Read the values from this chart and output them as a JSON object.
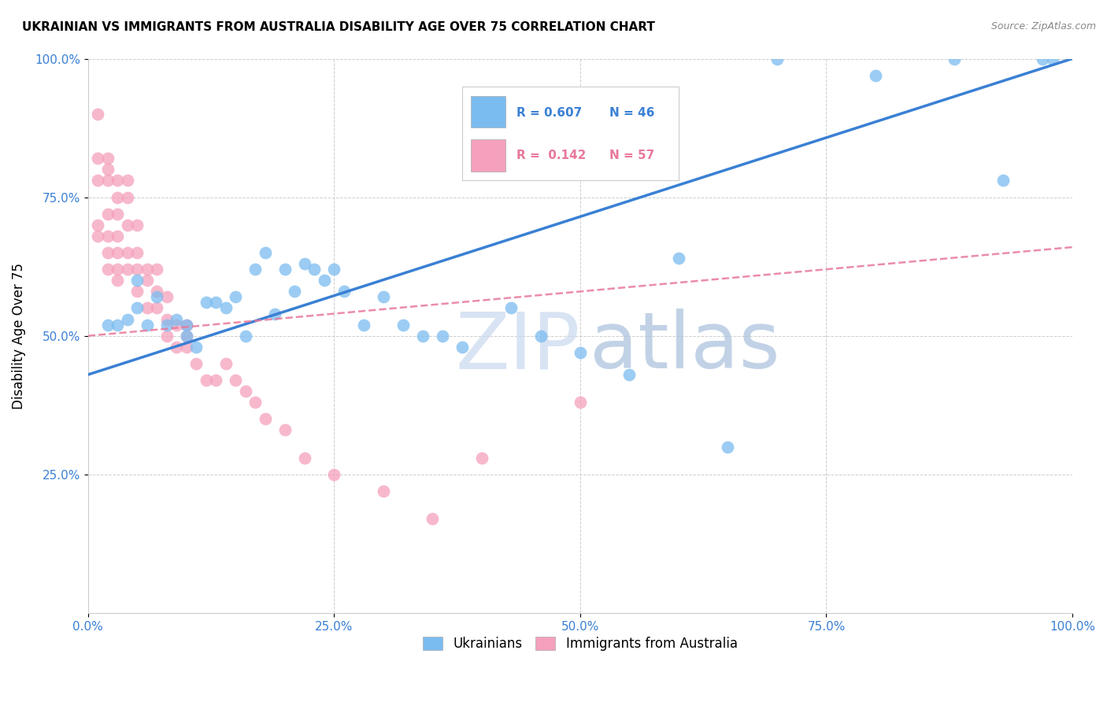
{
  "title": "UKRAINIAN VS IMMIGRANTS FROM AUSTRALIA DISABILITY AGE OVER 75 CORRELATION CHART",
  "source": "Source: ZipAtlas.com",
  "ylabel": "Disability Age Over 75",
  "xlim": [
    0,
    1.0
  ],
  "ylim": [
    0,
    1.0
  ],
  "xtick_labels": [
    "0.0%",
    "25.0%",
    "50.0%",
    "75.0%",
    "100.0%"
  ],
  "xtick_vals": [
    0.0,
    0.25,
    0.5,
    0.75,
    1.0
  ],
  "ytick_labels": [
    "25.0%",
    "50.0%",
    "75.0%",
    "100.0%"
  ],
  "ytick_vals": [
    0.25,
    0.5,
    0.75,
    1.0
  ],
  "blue_color": "#7bbcf0",
  "pink_color": "#f5a0bc",
  "blue_line_color": "#3a80d4",
  "pink_line_color": "#e8789a",
  "legend_R_blue": "0.607",
  "legend_N_blue": "46",
  "legend_R_pink": "0.142",
  "legend_N_pink": "57",
  "legend_label_blue": "Ukrainians",
  "legend_label_pink": "Immigrants from Australia",
  "blue_x": [
    0.02,
    0.03,
    0.04,
    0.05,
    0.05,
    0.06,
    0.07,
    0.08,
    0.09,
    0.1,
    0.1,
    0.11,
    0.12,
    0.13,
    0.14,
    0.15,
    0.16,
    0.17,
    0.18,
    0.19,
    0.2,
    0.21,
    0.22,
    0.23,
    0.24,
    0.25,
    0.26,
    0.28,
    0.3,
    0.32,
    0.34,
    0.36,
    0.38,
    0.4,
    0.43,
    0.46,
    0.5,
    0.55,
    0.6,
    0.65,
    0.7,
    0.8,
    0.88,
    0.93,
    0.97,
    0.98
  ],
  "blue_y": [
    0.52,
    0.52,
    0.53,
    0.55,
    0.6,
    0.52,
    0.57,
    0.52,
    0.53,
    0.52,
    0.5,
    0.48,
    0.56,
    0.56,
    0.55,
    0.57,
    0.5,
    0.62,
    0.65,
    0.54,
    0.62,
    0.58,
    0.63,
    0.62,
    0.6,
    0.62,
    0.58,
    0.52,
    0.57,
    0.52,
    0.5,
    0.5,
    0.48,
    0.8,
    0.55,
    0.5,
    0.47,
    0.43,
    0.64,
    0.3,
    1.0,
    0.97,
    1.0,
    0.78,
    1.0,
    1.0
  ],
  "pink_x": [
    0.01,
    0.01,
    0.01,
    0.01,
    0.01,
    0.02,
    0.02,
    0.02,
    0.02,
    0.02,
    0.02,
    0.02,
    0.03,
    0.03,
    0.03,
    0.03,
    0.03,
    0.03,
    0.03,
    0.04,
    0.04,
    0.04,
    0.04,
    0.04,
    0.05,
    0.05,
    0.05,
    0.05,
    0.06,
    0.06,
    0.06,
    0.07,
    0.07,
    0.07,
    0.08,
    0.08,
    0.08,
    0.09,
    0.09,
    0.1,
    0.1,
    0.1,
    0.11,
    0.12,
    0.13,
    0.14,
    0.15,
    0.16,
    0.17,
    0.18,
    0.2,
    0.22,
    0.25,
    0.3,
    0.35,
    0.4,
    0.5
  ],
  "pink_y": [
    0.9,
    0.82,
    0.78,
    0.7,
    0.68,
    0.82,
    0.8,
    0.78,
    0.72,
    0.68,
    0.65,
    0.62,
    0.78,
    0.75,
    0.72,
    0.68,
    0.65,
    0.62,
    0.6,
    0.78,
    0.75,
    0.7,
    0.65,
    0.62,
    0.7,
    0.65,
    0.62,
    0.58,
    0.62,
    0.6,
    0.55,
    0.62,
    0.58,
    0.55,
    0.57,
    0.53,
    0.5,
    0.52,
    0.48,
    0.52,
    0.5,
    0.48,
    0.45,
    0.42,
    0.42,
    0.45,
    0.42,
    0.4,
    0.38,
    0.35,
    0.33,
    0.28,
    0.25,
    0.22,
    0.17,
    0.28,
    0.38
  ]
}
